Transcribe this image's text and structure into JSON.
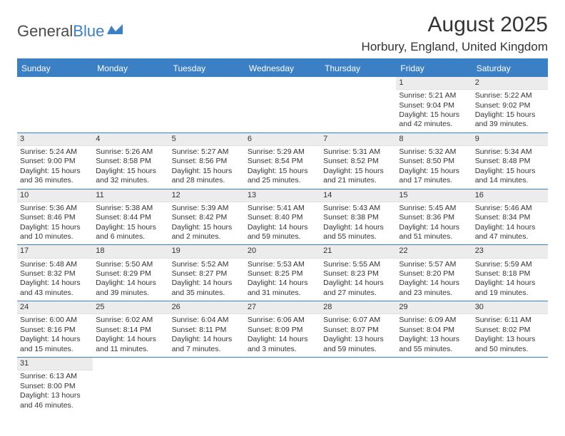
{
  "logo": {
    "text1": "General",
    "text2": "Blue",
    "text_color": "#4a4a4a",
    "blue_color": "#3b7fc4"
  },
  "header": {
    "month_title": "August 2025",
    "location": "Horbury, England, United Kingdom"
  },
  "styling": {
    "header_bg": "#3b7fc4",
    "header_text": "#ffffff",
    "daynum_bg": "#ececec",
    "border_color": "#3b7fc4",
    "body_text": "#333333",
    "font_family": "Arial",
    "title_fontsize": 30,
    "location_fontsize": 17,
    "header_fontsize": 12,
    "cell_fontsize": 10.5
  },
  "day_names": [
    "Sunday",
    "Monday",
    "Tuesday",
    "Wednesday",
    "Thursday",
    "Friday",
    "Saturday"
  ],
  "weeks": [
    [
      {
        "day": "",
        "lines": []
      },
      {
        "day": "",
        "lines": []
      },
      {
        "day": "",
        "lines": []
      },
      {
        "day": "",
        "lines": []
      },
      {
        "day": "",
        "lines": []
      },
      {
        "day": "1",
        "lines": [
          "Sunrise: 5:21 AM",
          "Sunset: 9:04 PM",
          "Daylight: 15 hours and 42 minutes."
        ]
      },
      {
        "day": "2",
        "lines": [
          "Sunrise: 5:22 AM",
          "Sunset: 9:02 PM",
          "Daylight: 15 hours and 39 minutes."
        ]
      }
    ],
    [
      {
        "day": "3",
        "lines": [
          "Sunrise: 5:24 AM",
          "Sunset: 9:00 PM",
          "Daylight: 15 hours and 36 minutes."
        ]
      },
      {
        "day": "4",
        "lines": [
          "Sunrise: 5:26 AM",
          "Sunset: 8:58 PM",
          "Daylight: 15 hours and 32 minutes."
        ]
      },
      {
        "day": "5",
        "lines": [
          "Sunrise: 5:27 AM",
          "Sunset: 8:56 PM",
          "Daylight: 15 hours and 28 minutes."
        ]
      },
      {
        "day": "6",
        "lines": [
          "Sunrise: 5:29 AM",
          "Sunset: 8:54 PM",
          "Daylight: 15 hours and 25 minutes."
        ]
      },
      {
        "day": "7",
        "lines": [
          "Sunrise: 5:31 AM",
          "Sunset: 8:52 PM",
          "Daylight: 15 hours and 21 minutes."
        ]
      },
      {
        "day": "8",
        "lines": [
          "Sunrise: 5:32 AM",
          "Sunset: 8:50 PM",
          "Daylight: 15 hours and 17 minutes."
        ]
      },
      {
        "day": "9",
        "lines": [
          "Sunrise: 5:34 AM",
          "Sunset: 8:48 PM",
          "Daylight: 15 hours and 14 minutes."
        ]
      }
    ],
    [
      {
        "day": "10",
        "lines": [
          "Sunrise: 5:36 AM",
          "Sunset: 8:46 PM",
          "Daylight: 15 hours and 10 minutes."
        ]
      },
      {
        "day": "11",
        "lines": [
          "Sunrise: 5:38 AM",
          "Sunset: 8:44 PM",
          "Daylight: 15 hours and 6 minutes."
        ]
      },
      {
        "day": "12",
        "lines": [
          "Sunrise: 5:39 AM",
          "Sunset: 8:42 PM",
          "Daylight: 15 hours and 2 minutes."
        ]
      },
      {
        "day": "13",
        "lines": [
          "Sunrise: 5:41 AM",
          "Sunset: 8:40 PM",
          "Daylight: 14 hours and 59 minutes."
        ]
      },
      {
        "day": "14",
        "lines": [
          "Sunrise: 5:43 AM",
          "Sunset: 8:38 PM",
          "Daylight: 14 hours and 55 minutes."
        ]
      },
      {
        "day": "15",
        "lines": [
          "Sunrise: 5:45 AM",
          "Sunset: 8:36 PM",
          "Daylight: 14 hours and 51 minutes."
        ]
      },
      {
        "day": "16",
        "lines": [
          "Sunrise: 5:46 AM",
          "Sunset: 8:34 PM",
          "Daylight: 14 hours and 47 minutes."
        ]
      }
    ],
    [
      {
        "day": "17",
        "lines": [
          "Sunrise: 5:48 AM",
          "Sunset: 8:32 PM",
          "Daylight: 14 hours and 43 minutes."
        ]
      },
      {
        "day": "18",
        "lines": [
          "Sunrise: 5:50 AM",
          "Sunset: 8:29 PM",
          "Daylight: 14 hours and 39 minutes."
        ]
      },
      {
        "day": "19",
        "lines": [
          "Sunrise: 5:52 AM",
          "Sunset: 8:27 PM",
          "Daylight: 14 hours and 35 minutes."
        ]
      },
      {
        "day": "20",
        "lines": [
          "Sunrise: 5:53 AM",
          "Sunset: 8:25 PM",
          "Daylight: 14 hours and 31 minutes."
        ]
      },
      {
        "day": "21",
        "lines": [
          "Sunrise: 5:55 AM",
          "Sunset: 8:23 PM",
          "Daylight: 14 hours and 27 minutes."
        ]
      },
      {
        "day": "22",
        "lines": [
          "Sunrise: 5:57 AM",
          "Sunset: 8:20 PM",
          "Daylight: 14 hours and 23 minutes."
        ]
      },
      {
        "day": "23",
        "lines": [
          "Sunrise: 5:59 AM",
          "Sunset: 8:18 PM",
          "Daylight: 14 hours and 19 minutes."
        ]
      }
    ],
    [
      {
        "day": "24",
        "lines": [
          "Sunrise: 6:00 AM",
          "Sunset: 8:16 PM",
          "Daylight: 14 hours and 15 minutes."
        ]
      },
      {
        "day": "25",
        "lines": [
          "Sunrise: 6:02 AM",
          "Sunset: 8:14 PM",
          "Daylight: 14 hours and 11 minutes."
        ]
      },
      {
        "day": "26",
        "lines": [
          "Sunrise: 6:04 AM",
          "Sunset: 8:11 PM",
          "Daylight: 14 hours and 7 minutes."
        ]
      },
      {
        "day": "27",
        "lines": [
          "Sunrise: 6:06 AM",
          "Sunset: 8:09 PM",
          "Daylight: 14 hours and 3 minutes."
        ]
      },
      {
        "day": "28",
        "lines": [
          "Sunrise: 6:07 AM",
          "Sunset: 8:07 PM",
          "Daylight: 13 hours and 59 minutes."
        ]
      },
      {
        "day": "29",
        "lines": [
          "Sunrise: 6:09 AM",
          "Sunset: 8:04 PM",
          "Daylight: 13 hours and 55 minutes."
        ]
      },
      {
        "day": "30",
        "lines": [
          "Sunrise: 6:11 AM",
          "Sunset: 8:02 PM",
          "Daylight: 13 hours and 50 minutes."
        ]
      }
    ],
    [
      {
        "day": "31",
        "lines": [
          "Sunrise: 6:13 AM",
          "Sunset: 8:00 PM",
          "Daylight: 13 hours and 46 minutes."
        ]
      },
      {
        "day": "",
        "lines": []
      },
      {
        "day": "",
        "lines": []
      },
      {
        "day": "",
        "lines": []
      },
      {
        "day": "",
        "lines": []
      },
      {
        "day": "",
        "lines": []
      },
      {
        "day": "",
        "lines": []
      }
    ]
  ]
}
